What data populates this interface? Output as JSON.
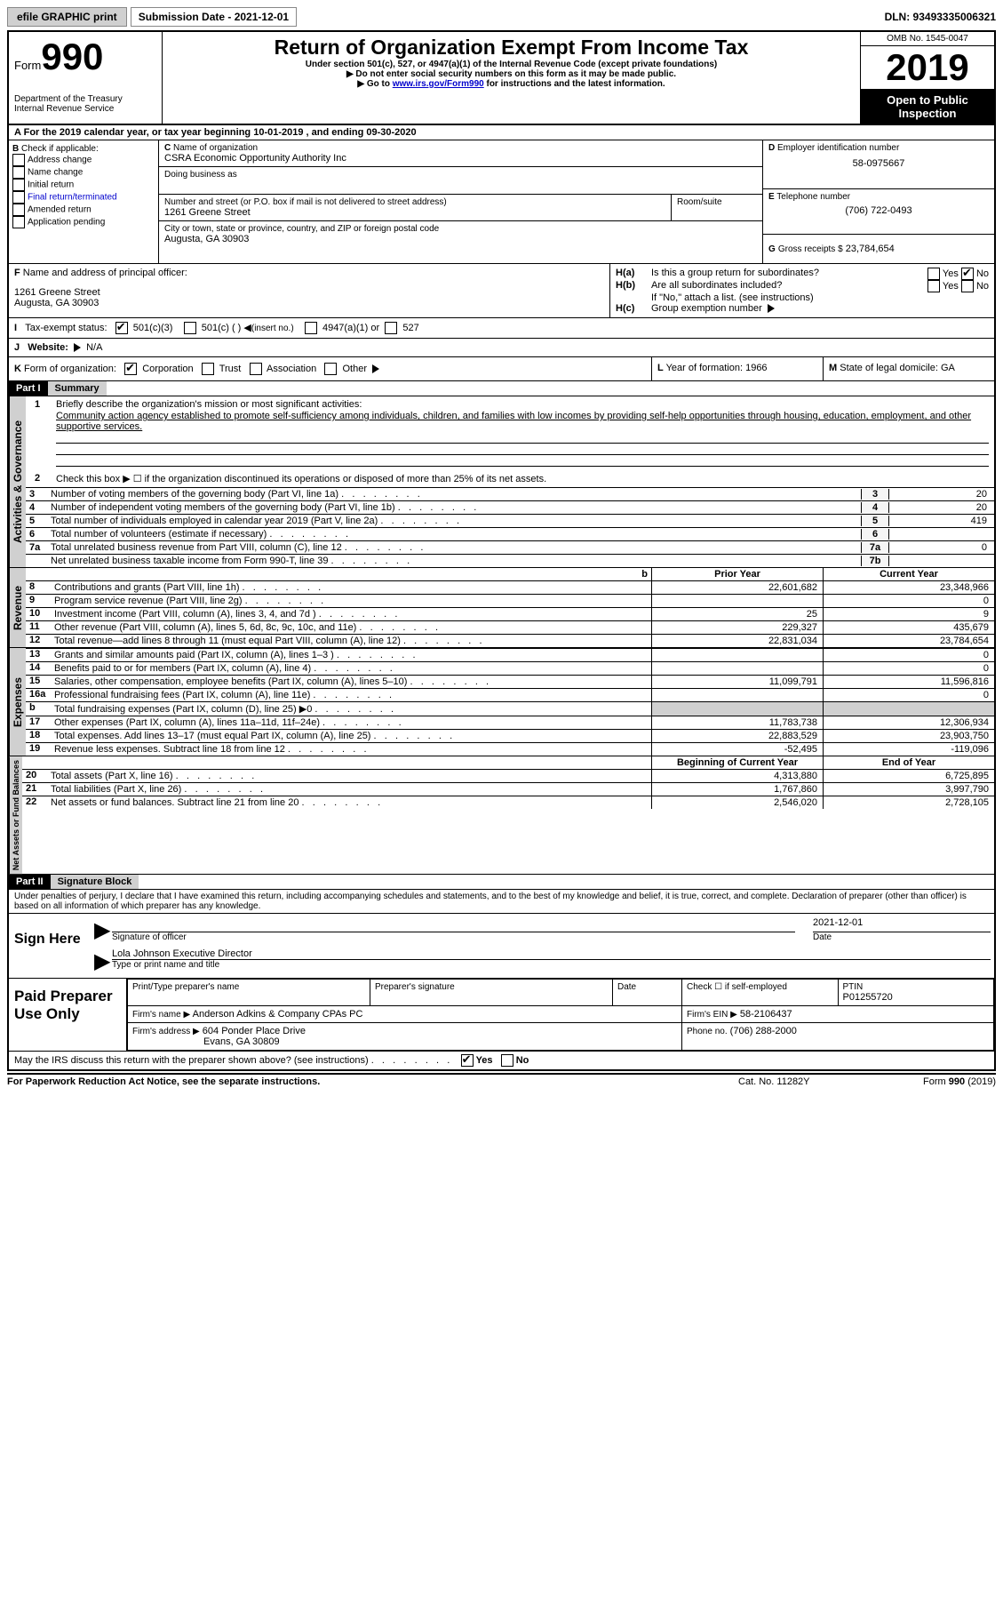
{
  "toolbar": {
    "efile_label": "efile GRAPHIC print",
    "submission_date_label": "Submission Date - 2021-12-01",
    "dln": "DLN: 93493335006321"
  },
  "header": {
    "form_label": "Form",
    "form_number": "990",
    "dept": "Department of the Treasury",
    "irs": "Internal Revenue Service",
    "title": "Return of Organization Exempt From Income Tax",
    "subtitle": "Under section 501(c), 527, or 4947(a)(1) of the Internal Revenue Code (except private foundations)",
    "note1": "Do not enter social security numbers on this form as it may be made public.",
    "note2_prefix": "Go to ",
    "note2_link": "www.irs.gov/Form990",
    "note2_suffix": " for instructions and the latest information.",
    "omb": "OMB No. 1545-0047",
    "year": "2019",
    "open_public": "Open to Public Inspection"
  },
  "line_a": {
    "text_prefix": "For the 2019 calendar year, or tax year beginning ",
    "begin": "10-01-2019",
    "mid": " , and ending ",
    "end": "09-30-2020"
  },
  "box_b": {
    "label": "Check if applicable:",
    "items": [
      "Address change",
      "Name change",
      "Initial return",
      "Final return/terminated",
      "Amended return",
      "Application pending"
    ]
  },
  "box_c": {
    "name_label": "Name of organization",
    "name": "CSRA Economic Opportunity Authority Inc",
    "dba_label": "Doing business as",
    "addr_label": "Number and street (or P.O. box if mail is not delivered to street address)",
    "room_label": "Room/suite",
    "addr": "1261 Greene Street",
    "city_label": "City or town, state or province, country, and ZIP or foreign postal code",
    "city": "Augusta, GA  30903"
  },
  "box_d": {
    "label": "Employer identification number",
    "value": "58-0975667"
  },
  "box_e": {
    "label": "Telephone number",
    "value": "(706) 722-0493"
  },
  "box_g": {
    "label": "Gross receipts $",
    "value": "23,784,654"
  },
  "box_f": {
    "label": "Name and address of principal officer:",
    "addr1": "1261 Greene Street",
    "addr2": "Augusta, GA  30903"
  },
  "box_h": {
    "a_label": "Is this a group return for subordinates?",
    "b_label": "Are all subordinates included?",
    "b_note": "If \"No,\" attach a list. (see instructions)",
    "c_label": "Group exemption number",
    "yes": "Yes",
    "no": "No"
  },
  "box_i": {
    "label": "Tax-exempt status:",
    "opt1": "501(c)(3)",
    "opt2": "501(c) (  )",
    "opt2_note": "(insert no.)",
    "opt3": "4947(a)(1) or",
    "opt4": "527"
  },
  "box_j": {
    "label": "Website:",
    "value": "N/A"
  },
  "box_k": {
    "label": "Form of organization:",
    "opts": [
      "Corporation",
      "Trust",
      "Association",
      "Other"
    ]
  },
  "box_l": {
    "label": "Year of formation:",
    "value": "1966"
  },
  "box_m": {
    "label": "State of legal domicile:",
    "value": "GA"
  },
  "part1": {
    "header": "Part I",
    "title": "Summary",
    "sections": {
      "gov": "Activities & Governance",
      "rev": "Revenue",
      "exp": "Expenses",
      "net": "Net Assets or Fund Balances"
    },
    "line1_label": "Briefly describe the organization's mission or most significant activities:",
    "line1_text": "Community action agency established to promote self-sufficiency among individuals, children, and families with low incomes by providing self-help opportunities through housing, education, employment, and other supportive services.",
    "line2": "Check this box ▶ ☐  if the organization discontinued its operations or disposed of more than 25% of its net assets.",
    "lines_single": [
      {
        "n": "3",
        "t": "Number of voting members of the governing body (Part VI, line 1a)",
        "box": "3",
        "v": "20"
      },
      {
        "n": "4",
        "t": "Number of independent voting members of the governing body (Part VI, line 1b)",
        "box": "4",
        "v": "20"
      },
      {
        "n": "5",
        "t": "Total number of individuals employed in calendar year 2019 (Part V, line 2a)",
        "box": "5",
        "v": "419"
      },
      {
        "n": "6",
        "t": "Total number of volunteers (estimate if necessary)",
        "box": "6",
        "v": ""
      },
      {
        "n": "7a",
        "t": "Total unrelated business revenue from Part VIII, column (C), line 12",
        "box": "7a",
        "v": "0"
      },
      {
        "n": "",
        "t": "Net unrelated business taxable income from Form 990-T, line 39",
        "box": "7b",
        "v": ""
      }
    ],
    "col_headers": {
      "prior": "Prior Year",
      "curr": "Current Year"
    },
    "revenue": [
      {
        "n": "8",
        "t": "Contributions and grants (Part VIII, line 1h)",
        "p": "22,601,682",
        "c": "23,348,966"
      },
      {
        "n": "9",
        "t": "Program service revenue (Part VIII, line 2g)",
        "p": "",
        "c": "0"
      },
      {
        "n": "10",
        "t": "Investment income (Part VIII, column (A), lines 3, 4, and 7d )",
        "p": "25",
        "c": "9"
      },
      {
        "n": "11",
        "t": "Other revenue (Part VIII, column (A), lines 5, 6d, 8c, 9c, 10c, and 11e)",
        "p": "229,327",
        "c": "435,679"
      },
      {
        "n": "12",
        "t": "Total revenue—add lines 8 through 11 (must equal Part VIII, column (A), line 12)",
        "p": "22,831,034",
        "c": "23,784,654"
      }
    ],
    "expenses": [
      {
        "n": "13",
        "t": "Grants and similar amounts paid (Part IX, column (A), lines 1–3 )",
        "p": "",
        "c": "0"
      },
      {
        "n": "14",
        "t": "Benefits paid to or for members (Part IX, column (A), line 4)",
        "p": "",
        "c": "0"
      },
      {
        "n": "15",
        "t": "Salaries, other compensation, employee benefits (Part IX, column (A), lines 5–10)",
        "p": "11,099,791",
        "c": "11,596,816"
      },
      {
        "n": "16a",
        "t": "Professional fundraising fees (Part IX, column (A), line 11e)",
        "p": "",
        "c": "0"
      },
      {
        "n": "b",
        "t": "Total fundraising expenses (Part IX, column (D), line 25) ▶0",
        "p": "SHADE",
        "c": "SHADE"
      },
      {
        "n": "17",
        "t": "Other expenses (Part IX, column (A), lines 11a–11d, 11f–24e)",
        "p": "11,783,738",
        "c": "12,306,934"
      },
      {
        "n": "18",
        "t": "Total expenses. Add lines 13–17 (must equal Part IX, column (A), line 25)",
        "p": "22,883,529",
        "c": "23,903,750"
      },
      {
        "n": "19",
        "t": "Revenue less expenses. Subtract line 18 from line 12",
        "p": "-52,495",
        "c": "-119,096"
      }
    ],
    "net_headers": {
      "prior": "Beginning of Current Year",
      "curr": "End of Year"
    },
    "net": [
      {
        "n": "20",
        "t": "Total assets (Part X, line 16)",
        "p": "4,313,880",
        "c": "6,725,895"
      },
      {
        "n": "21",
        "t": "Total liabilities (Part X, line 26)",
        "p": "1,767,860",
        "c": "3,997,790"
      },
      {
        "n": "22",
        "t": "Net assets or fund balances. Subtract line 21 from line 20",
        "p": "2,546,020",
        "c": "2,728,105"
      }
    ]
  },
  "part2": {
    "header": "Part II",
    "title": "Signature Block",
    "declaration": "Under penalties of perjury, I declare that I have examined this return, including accompanying schedules and statements, and to the best of my knowledge and belief, it is true, correct, and complete. Declaration of preparer (other than officer) is based on all information of which preparer has any knowledge.",
    "sign_here": "Sign Here",
    "sig_officer": "Signature of officer",
    "sig_date": "2021-12-01",
    "date_label": "Date",
    "officer_name": "Lola Johnson  Executive Director",
    "type_name": "Type or print name and title",
    "paid_prep": "Paid Preparer Use Only",
    "prep_name_label": "Print/Type preparer's name",
    "prep_sig_label": "Preparer's signature",
    "check_if": "Check ☐ if self-employed",
    "ptin_label": "PTIN",
    "ptin": "P01255720",
    "firm_name_label": "Firm's name   ▶",
    "firm_name": "Anderson Adkins & Company CPAs PC",
    "firm_ein_label": "Firm's EIN ▶",
    "firm_ein": "58-2106437",
    "firm_addr_label": "Firm's address ▶",
    "firm_addr1": "604 Ponder Place Drive",
    "firm_addr2": "Evans, GA  30809",
    "phone_label": "Phone no.",
    "phone": "(706) 288-2000",
    "discuss": "May the IRS discuss this return with the preparer shown above? (see instructions)"
  },
  "footer": {
    "paperwork": "For Paperwork Reduction Act Notice, see the separate instructions.",
    "cat": "Cat. No. 11282Y",
    "form": "Form 990 (2019)"
  }
}
